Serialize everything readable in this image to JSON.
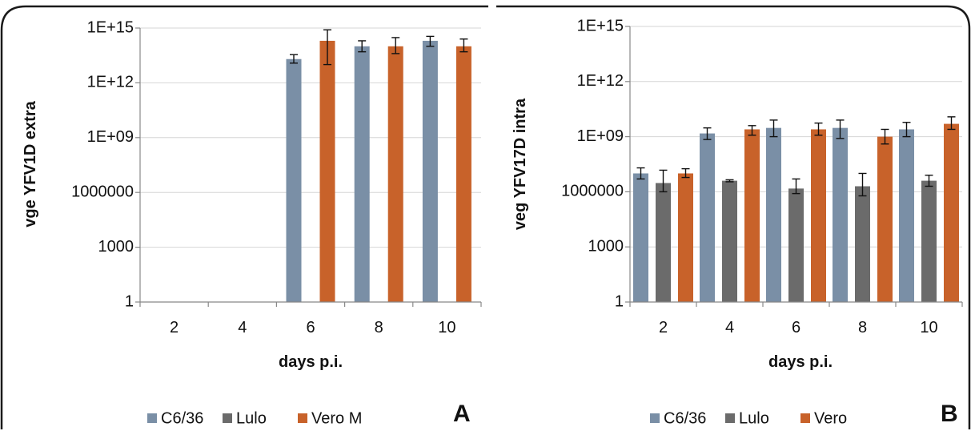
{
  "chart_data": [
    {
      "type": "bar",
      "panel_label": "A",
      "categories": [
        "2",
        "4",
        "6",
        "8",
        "10"
      ],
      "xlabel": "days p.i.",
      "ylabel": "vge YFV1D extra",
      "yscale": "log",
      "ylim": [
        1,
        1000000000000000.0
      ],
      "yticks": [
        {
          "value": 1,
          "label": "1"
        },
        {
          "value": 1000,
          "label": "1000"
        },
        {
          "value": 1000000,
          "label": "1000000"
        },
        {
          "value": 1000000000.0,
          "label": "1E+09"
        },
        {
          "value": 1000000000000.0,
          "label": "1E+12"
        },
        {
          "value": 1000000000000000.0,
          "label": "1E+15"
        }
      ],
      "grid": true,
      "legend_position": "bottom",
      "series": [
        {
          "name": "C6/36",
          "color": "#7a8fa6",
          "values": [
            null,
            null,
            20000000000000.0,
            100000000000000.0,
            200000000000000.0
          ],
          "errors": [
            null,
            null,
            [
              12000000000000.0,
              35000000000000.0
            ],
            [
              50000000000000.0,
              200000000000000.0
            ],
            [
              100000000000000.0,
              350000000000000.0
            ]
          ]
        },
        {
          "name": "Lulo",
          "color": "#6b6b6b",
          "values": [
            null,
            null,
            null,
            null,
            null
          ],
          "errors": [
            null,
            null,
            null,
            null,
            null
          ]
        },
        {
          "name": "Vero M",
          "color": "#c8622a",
          "values": [
            null,
            null,
            200000000000000.0,
            100000000000000.0,
            100000000000000.0
          ],
          "errors": [
            null,
            null,
            [
              10000000000000.0,
              800000000000000.0
            ],
            [
              40000000000000.0,
              300000000000000.0
            ],
            [
              50000000000000.0,
              250000000000000.0
            ]
          ]
        }
      ]
    },
    {
      "type": "bar",
      "panel_label": "B",
      "categories": [
        "2",
        "4",
        "6",
        "8",
        "10"
      ],
      "xlabel": "days p.i.",
      "ylabel": "veg YFV17D intra",
      "yscale": "log",
      "ylim": [
        1,
        1000000000000000.0
      ],
      "yticks": [
        {
          "value": 1,
          "label": "1"
        },
        {
          "value": 1000,
          "label": "1000"
        },
        {
          "value": 1000000,
          "label": "1000000"
        },
        {
          "value": 1000000000.0,
          "label": "1E+09"
        },
        {
          "value": 1000000000000.0,
          "label": "1E+12"
        },
        {
          "value": 1000000000000000.0,
          "label": "1E+15"
        }
      ],
      "grid": true,
      "legend_position": "bottom",
      "series": [
        {
          "name": "C6/36",
          "color": "#7a8fa6",
          "values": [
            10000000.0,
            1500000000.0,
            3000000000.0,
            3000000000.0,
            2500000000.0
          ],
          "errors": [
            [
              5000000.0,
              20000000.0
            ],
            [
              700000000.0,
              3000000000.0
            ],
            [
              1000000000.0,
              8000000000.0
            ],
            [
              800000000.0,
              8000000000.0
            ],
            [
              1000000000.0,
              6000000000.0
            ]
          ]
        },
        {
          "name": "Lulo",
          "color": "#6b6b6b",
          "values": [
            3000000.0,
            4000000.0,
            1500000.0,
            2000000.0,
            4000000.0
          ],
          "errors": [
            [
              1000000.0,
              15000000.0
            ],
            [
              3500000.0,
              4500000.0
            ],
            [
              800000.0,
              5000000.0
            ],
            [
              600000.0,
              10000000.0
            ],
            [
              2000000.0,
              8000000.0
            ]
          ]
        },
        {
          "name": "Vero",
          "color": "#c8622a",
          "values": [
            10000000.0,
            2500000000.0,
            2500000000.0,
            1000000000.0,
            5000000000.0
          ],
          "errors": [
            [
              6000000.0,
              18000000.0
            ],
            [
              1200000000.0,
              4000000000.0
            ],
            [
              1200000000.0,
              5500000000.0
            ],
            [
              400000000.0,
              2500000000.0
            ],
            [
              2500000000.0,
              12000000000.0
            ]
          ]
        }
      ]
    }
  ]
}
